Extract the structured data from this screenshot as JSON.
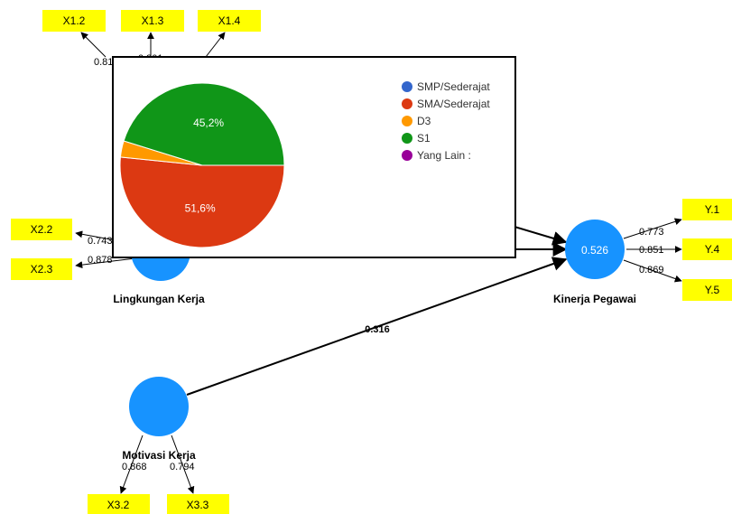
{
  "colors": {
    "indicator_fill": "#ffff00",
    "construct_fill": "#1793ff",
    "edge": "#000000",
    "popup_border": "#000000",
    "popup_bg": "#ffffff"
  },
  "diagram": {
    "indicators": [
      {
        "id": "x12",
        "label": "X1.2"
      },
      {
        "id": "x13",
        "label": "X1.3"
      },
      {
        "id": "x14",
        "label": "X1.4"
      },
      {
        "id": "x22",
        "label": "X2.2"
      },
      {
        "id": "x23",
        "label": "X2.3"
      },
      {
        "id": "x32",
        "label": "X3.2"
      },
      {
        "id": "x33",
        "label": "X3.3"
      },
      {
        "id": "y1",
        "label": "Y.1"
      },
      {
        "id": "y4",
        "label": "Y.4"
      },
      {
        "id": "y5",
        "label": "Y.5"
      }
    ],
    "constructs": {
      "lingkungan": {
        "label": "Lingkungan Kerja"
      },
      "motivasi": {
        "label": "Motivasi Kerja"
      },
      "kinerja": {
        "label": "Kinerja Pegawai",
        "r2": "0.526"
      }
    },
    "loadings": {
      "x12": "0.81",
      "x13": "0.801",
      "x22": "0.743",
      "x23": "0.878",
      "x32": "0.868",
      "x33": "0.794",
      "y1": "0.773",
      "y4": "0.851",
      "y5": "0.869"
    },
    "paths": {
      "motivasi_kinerja": "0.316"
    }
  },
  "chart_data": {
    "type": "pie",
    "title": "",
    "slices": [
      {
        "name": "SMP/Sederajat",
        "value": 0,
        "color": "#3366cc"
      },
      {
        "name": "SMA/Sederajat",
        "value": 51.6,
        "label": "51,6%",
        "color": "#dc3912"
      },
      {
        "name": "D3",
        "value": 3.2,
        "color": "#ff9900"
      },
      {
        "name": "S1",
        "value": 45.2,
        "label": "45,2%",
        "color": "#109618"
      },
      {
        "name": "Yang Lain :",
        "value": 0,
        "color": "#990099"
      }
    ],
    "legend_position": "right"
  }
}
